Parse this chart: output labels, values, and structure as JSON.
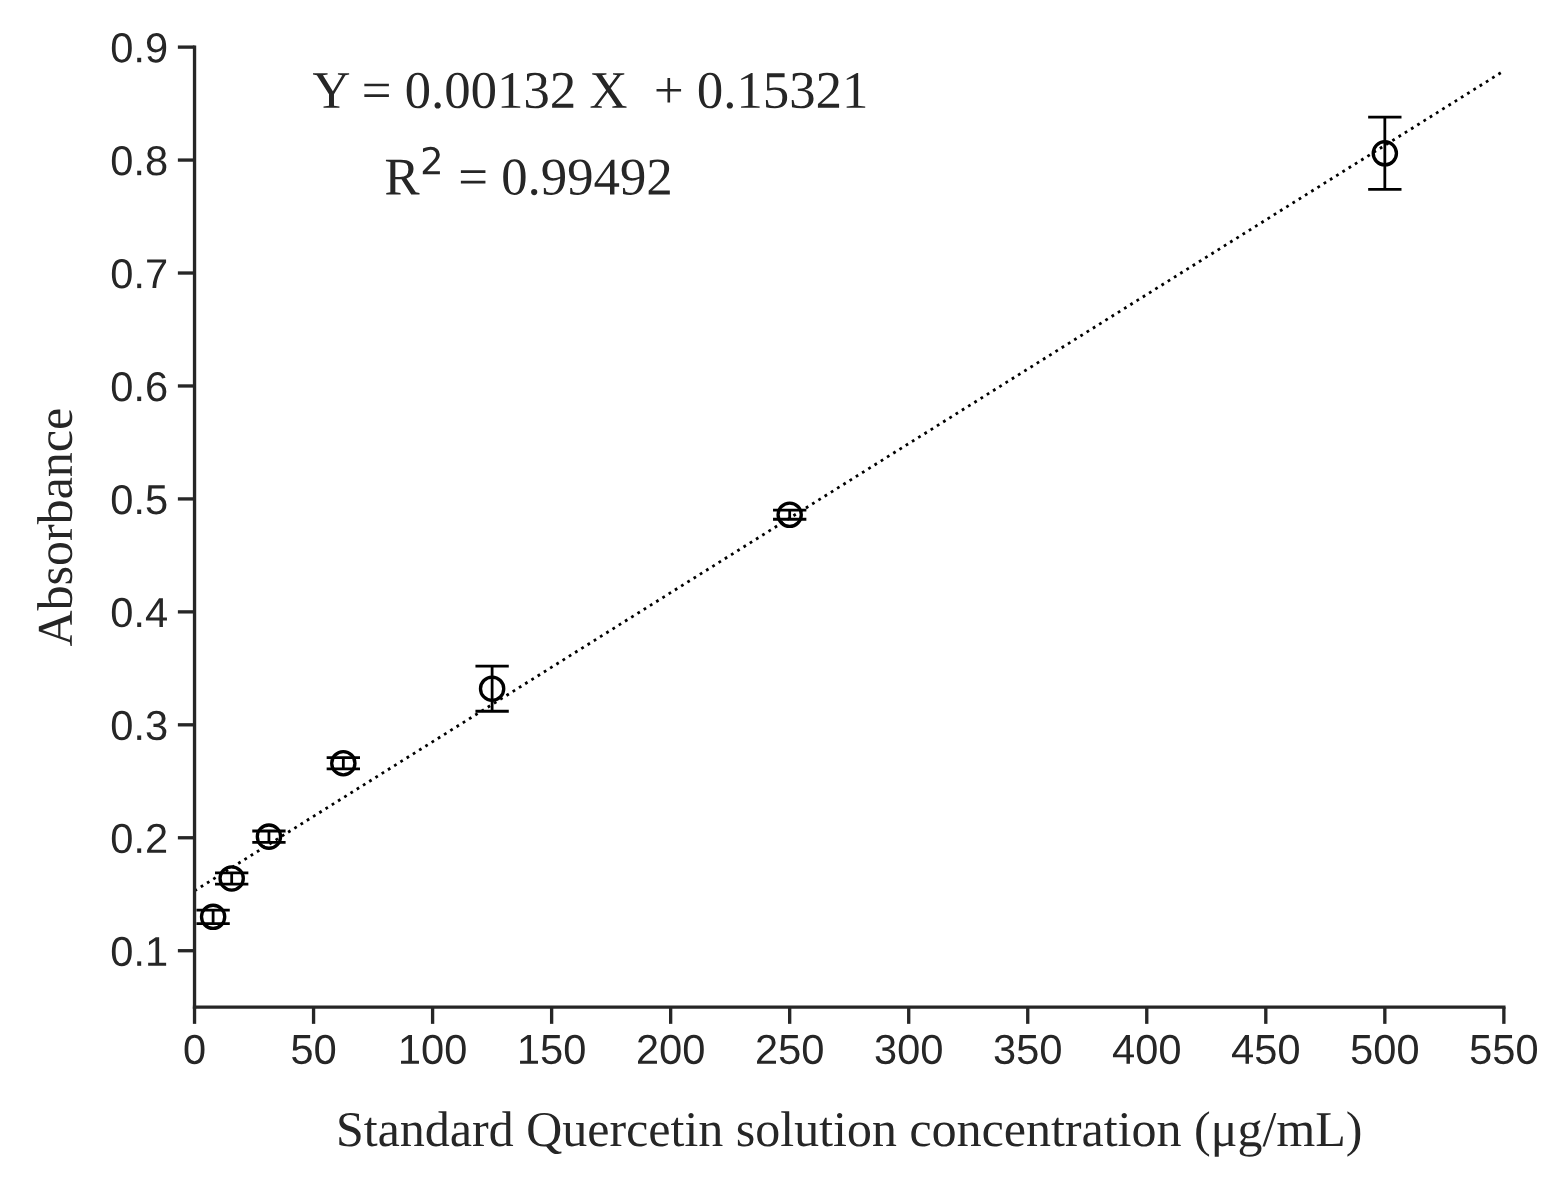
{
  "chart_data": {
    "type": "scatter",
    "xlabel": "Standard Quercetin solution concentration (μg/mL)",
    "ylabel": "Absorbance",
    "annotations": [
      "Y = 0.00132 X  + 0.15321",
      "R$^{2}$ = 0.99492"
    ],
    "x": [
      7.8,
      15.6,
      31.25,
      62.5,
      125,
      250,
      500
    ],
    "series": [
      {
        "color": "#000000",
        "marker": "circle",
        "values": [
          0.13,
          0.164,
          0.201,
          0.266,
          0.332,
          0.486,
          0.806
        ],
        "errors": [
          0.006,
          0.005,
          0.005,
          0.005,
          0.02,
          0.004,
          0.032
        ]
      },
      {
        "type": "line",
        "color": "#000000",
        "line_style": "dotted",
        "x": [
          0,
          550
        ],
        "values": [
          0.153,
          0.879
        ]
      }
    ],
    "xlim": [
      0,
      550
    ],
    "xticks": [
      0,
      50,
      100,
      150,
      200,
      250,
      300,
      350,
      400,
      450,
      500,
      550
    ],
    "ylim": [
      0.05,
      0.9
    ],
    "yticks": [
      0.1,
      0.2,
      0.3,
      0.4,
      0.5,
      0.6,
      0.7,
      0.8,
      0.9
    ],
    "grid": false,
    "legend": false
  }
}
